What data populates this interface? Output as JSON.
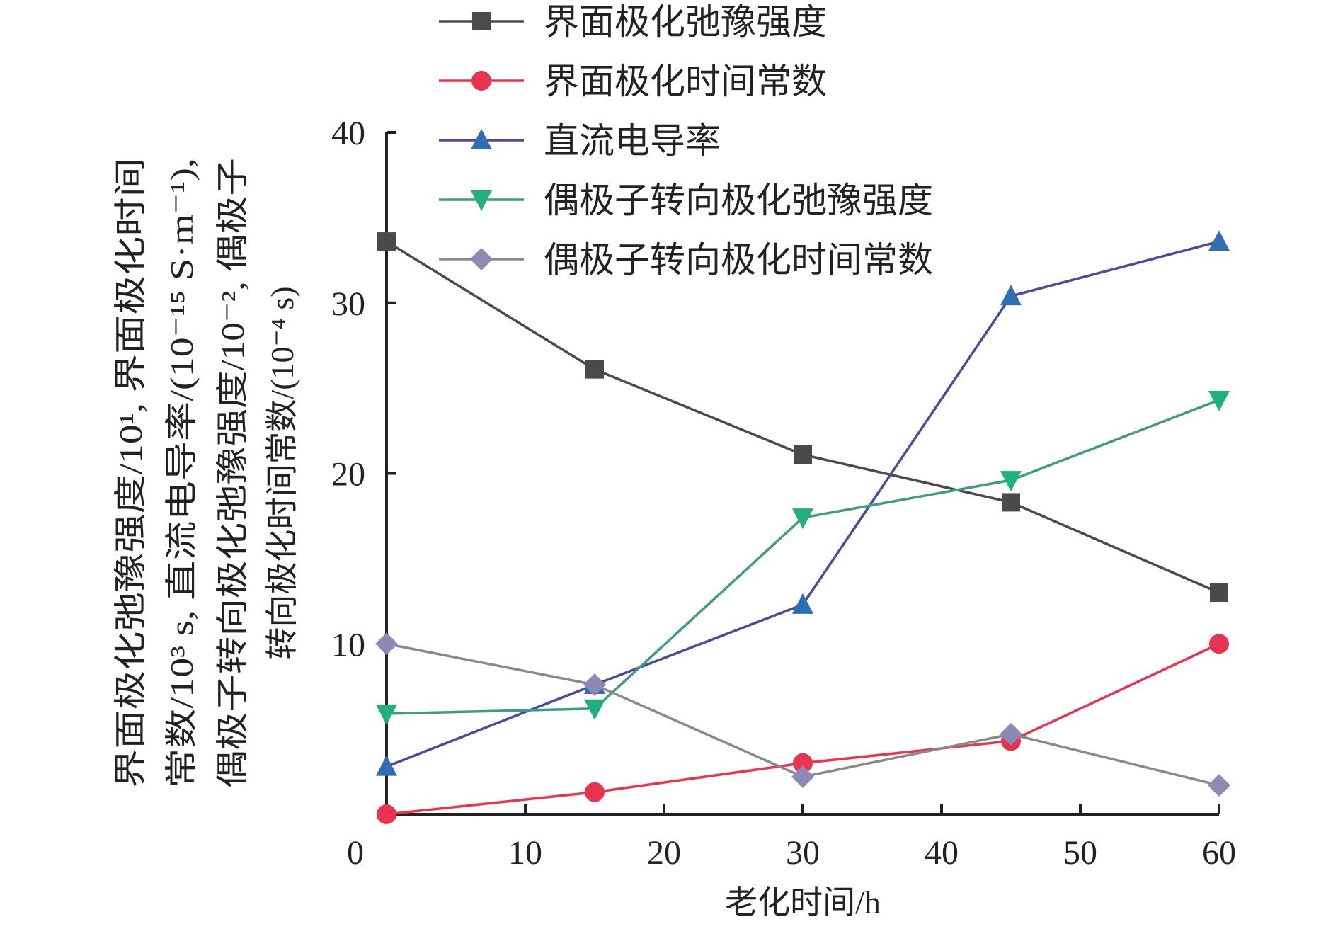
{
  "chart_data": {
    "type": "line",
    "title": "",
    "xlabel": "老化时间/h",
    "ylabel_lines": [
      "界面极化弛豫强度/10¹, 界面极化时间",
      "常数/10³ s, 直流电导率/(10⁻¹⁵ S·m⁻¹),",
      "偶极子转向极化弛豫强度/10⁻², 偶极子",
      "转向极化时间常数/(10⁻⁴ s)"
    ],
    "xlim": [
      0,
      60
    ],
    "ylim": [
      0,
      40
    ],
    "xticks": [
      0,
      10,
      20,
      30,
      40,
      50,
      60
    ],
    "yticks": [
      10,
      20,
      30,
      40
    ],
    "grid": false,
    "legend_position": "top",
    "x": [
      0,
      15,
      30,
      45,
      60
    ],
    "series": [
      {
        "name": "界面极化弛豫强度",
        "marker": "square",
        "color": "#4a4a4a",
        "values": [
          33.6,
          26.1,
          21.1,
          18.3,
          13.0
        ]
      },
      {
        "name": "界面极化时间常数",
        "marker": "circle",
        "color": "#e8344e",
        "values": [
          0.0,
          1.3,
          3.0,
          4.3,
          10.0
        ]
      },
      {
        "name": "直流电导率",
        "marker": "triangle-up",
        "color": "#4b4a9c",
        "marker_color": "#2f6db5",
        "values": [
          2.8,
          7.6,
          12.3,
          30.4,
          33.6
        ]
      },
      {
        "name": "偶极子转向极化弛豫强度",
        "marker": "triangle-down",
        "color": "#3f9a86",
        "marker_color": "#1fb07e",
        "values": [
          5.9,
          6.2,
          17.4,
          19.6,
          24.3
        ]
      },
      {
        "name": "偶极子转向极化时间常数",
        "marker": "diamond",
        "color": "#8a8a8a",
        "marker_color": "#8c89b4",
        "values": [
          10.0,
          7.6,
          2.2,
          4.7,
          1.7
        ]
      }
    ]
  }
}
